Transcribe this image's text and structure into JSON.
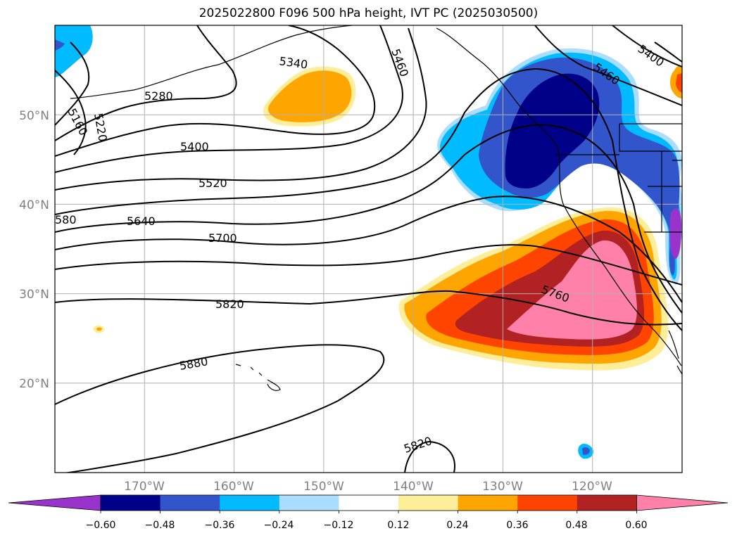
{
  "title": "2025022800 F096 500 hPa height, IVT PC (2025030500)",
  "map": {
    "projection": "cylindrical",
    "lon_range": [
      -180,
      -110
    ],
    "lat_range": [
      10,
      60
    ],
    "grid": true,
    "lat_ticks": [
      "50°N",
      "40°N",
      "30°N",
      "20°N"
    ],
    "lon_ticks": [
      "170°W",
      "160°W",
      "150°W",
      "140°W",
      "130°W",
      "120°W"
    ],
    "height_contour_labels": [
      "5280",
      "5340",
      "5460",
      "5400",
      "5460",
      "5160",
      "5220",
      "5400",
      "5520",
      "580",
      "5640",
      "5700",
      "5760",
      "5820",
      "5880",
      "5820"
    ],
    "fill_field": "IVT PC"
  },
  "colorbar": {
    "colors": [
      "#9933cc",
      "#000088",
      "#3355cc",
      "#00bbff",
      "#aaddff",
      "#ffffff",
      "#ffee99",
      "#ffa500",
      "#ff4400",
      "#b22222",
      "#ff80a8"
    ],
    "tick_labels": [
      "−0.60",
      "−0.48",
      "−0.36",
      "−0.24",
      "−0.12",
      "0.12",
      "0.24",
      "0.36",
      "0.48",
      "0.60"
    ],
    "extend": "both"
  }
}
